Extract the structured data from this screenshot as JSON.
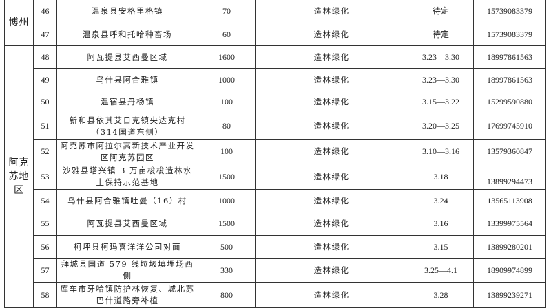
{
  "regions": [
    {
      "name": "博州",
      "rows": [
        {
          "no": "46",
          "location": "温泉县安格里格镇",
          "area": "70",
          "type": "造林绿化",
          "time": "待定",
          "phone": "15739083379"
        },
        {
          "no": "47",
          "location": "温泉县呼和托哈种畜场",
          "area": "60",
          "type": "造林绿化",
          "time": "待定",
          "phone": "15739083379"
        }
      ]
    },
    {
      "name": "阿克苏地区",
      "rows": [
        {
          "no": "48",
          "location": "阿瓦提县艾西曼区域",
          "area": "1600",
          "type": "造林绿化",
          "time": "3.23—3.30",
          "phone": "18997861563"
        },
        {
          "no": "49",
          "location": "乌什县阿合雅镇",
          "area": "1000",
          "type": "造林绿化",
          "time": "3.23—3.30",
          "phone": "18997861563"
        },
        {
          "no": "50",
          "location": "温宿县丹杨镇",
          "area": "100",
          "type": "造林绿化",
          "time": "3.15—3.22",
          "phone": "15299590880"
        },
        {
          "no": "51",
          "location": "新和县依其艾日克镇央达克村（314国道东侧）",
          "area": "80",
          "type": "造林绿化",
          "time": "3.20—3.25",
          "phone": "17699745910"
        },
        {
          "no": "52",
          "location": "阿克苏市阿拉尔高新技术产业开发区阿克苏园区",
          "area": "100",
          "type": "造林绿化",
          "time": "3.10—3.16",
          "phone": "13579360847"
        },
        {
          "no": "53",
          "location": "沙雅县塔兴镇 3 万亩梭梭造林水土保持示范基地",
          "area": "1500",
          "type": "造林绿化",
          "time": "3.18",
          "phone": "13899294473"
        },
        {
          "no": "54",
          "location": "乌什县阿合雅镇吐曼（16）村",
          "area": "1000",
          "type": "造林绿化",
          "time": "3.24",
          "phone": "13565113908"
        },
        {
          "no": "55",
          "location": "阿瓦提县艾西曼区域",
          "area": "1500",
          "type": "造林绿化",
          "time": "3.16",
          "phone": "13399975564"
        },
        {
          "no": "56",
          "location": "柯坪县柯玛喜洋洋公司对面",
          "area": "500",
          "type": "造林绿化",
          "time": "3.15",
          "phone": "13899280201"
        },
        {
          "no": "57",
          "location": "拜城县国道 579 线垃圾填埋场西侧",
          "area": "330",
          "type": "造林绿化",
          "time": "3.25—4.1",
          "phone": "18909974899"
        },
        {
          "no": "58",
          "location": "库车市牙哈镇防护林恢复、城北苏巴什道路旁补植",
          "area": "800",
          "type": "造林绿化",
          "time": "3.28",
          "phone": "13899239271"
        }
      ]
    }
  ]
}
